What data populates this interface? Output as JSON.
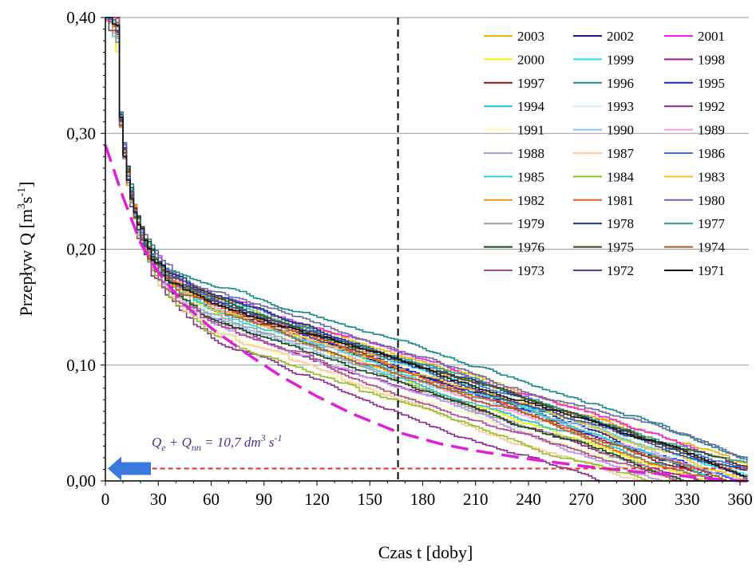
{
  "chart_data": {
    "type": "line",
    "title": "",
    "xlabel": "Czas t [doby]",
    "ylabel_parts": {
      "main": "Przepływ Q [m",
      "sup1": "3",
      "mid": "s",
      "sup2": "-1",
      "end": "]"
    },
    "xlim": [
      0,
      365
    ],
    "ylim": [
      0,
      0.4
    ],
    "x_ticks": [
      0,
      30,
      60,
      90,
      120,
      150,
      180,
      210,
      240,
      270,
      300,
      330,
      360
    ],
    "x_tick_labels": [
      "0",
      "30",
      "60",
      "90",
      "120",
      "150",
      "180",
      "210",
      "240",
      "270",
      "300",
      "330",
      "360"
    ],
    "y_ticks": [
      0,
      0.1,
      0.2,
      0.3,
      0.4
    ],
    "y_tick_labels": [
      "0,00",
      "0,10",
      "0,20",
      "0,30",
      "0,40"
    ],
    "grid": "horizontal",
    "legend_position": "top-right",
    "legend_columns": 3,
    "vertical_marker": {
      "x": 166,
      "style": "dashed",
      "color": "#000000"
    },
    "threshold": {
      "y": 0.0107,
      "label_parts": {
        "q1": "Q",
        "s1": "e",
        "plus": " + ",
        "q2": "Q",
        "s2": "nn",
        "rest": " = 10,7 dm",
        "sup1": "3",
        "s": " s",
        "sup2": "-1"
      },
      "color": "#e03030",
      "arrow_color": "#3a78e0"
    },
    "envelope": {
      "color": "#e020d8",
      "style": "dashed",
      "x": [
        0,
        10,
        20,
        30,
        45,
        60,
        80,
        100,
        120,
        140,
        166,
        190,
        210,
        240,
        270,
        300,
        330,
        350,
        360,
        365
      ],
      "y": [
        0.29,
        0.245,
        0.205,
        0.18,
        0.152,
        0.132,
        0.11,
        0.09,
        0.073,
        0.058,
        0.042,
        0.032,
        0.026,
        0.019,
        0.013,
        0.008,
        0.004,
        0.001,
        0.0,
        0.0
      ]
    },
    "series": [
      {
        "name": "2003",
        "color": "#f0b400",
        "low": 0.018,
        "mid": 0.125
      },
      {
        "name": "2002",
        "color": "#1a1a80",
        "low": 0.006,
        "mid": 0.11
      },
      {
        "name": "2001",
        "color": "#f020e8",
        "low": 0.028,
        "mid": 0.13
      },
      {
        "name": "2000",
        "color": "#f5f000",
        "low": 0.01,
        "mid": 0.105
      },
      {
        "name": "1999",
        "color": "#20e0e8",
        "low": 0.012,
        "mid": 0.12
      },
      {
        "name": "1998",
        "color": "#9a1a7a",
        "low": 0.02,
        "mid": 0.095
      },
      {
        "name": "1997",
        "color": "#8a1a1a",
        "low": 0.014,
        "mid": 0.115
      },
      {
        "name": "1996",
        "color": "#1a8a8a",
        "low": 0.022,
        "mid": 0.14
      },
      {
        "name": "1995",
        "color": "#2020d0",
        "low": 0.009,
        "mid": 0.118
      },
      {
        "name": "1994",
        "color": "#20c0d0",
        "low": 0.016,
        "mid": 0.108
      },
      {
        "name": "1993",
        "color": "#d0f0f8",
        "low": 0.011,
        "mid": 0.1
      },
      {
        "name": "1992",
        "color": "#8a2a8a",
        "low": 0.008,
        "mid": 0.07
      },
      {
        "name": "1991",
        "color": "#f8f8b0",
        "low": 0.007,
        "mid": 0.085
      },
      {
        "name": "1990",
        "color": "#90c0f0",
        "low": 0.013,
        "mid": 0.098
      },
      {
        "name": "1989",
        "color": "#f0a0e0",
        "low": 0.015,
        "mid": 0.112
      },
      {
        "name": "1988",
        "color": "#b890f0",
        "low": 0.01,
        "mid": 0.09
      },
      {
        "name": "1987",
        "color": "#f8c8a0",
        "low": 0.009,
        "mid": 0.08
      },
      {
        "name": "1986",
        "color": "#3070e0",
        "low": 0.018,
        "mid": 0.125
      },
      {
        "name": "1985",
        "color": "#30d0d0",
        "low": 0.012,
        "mid": 0.105
      },
      {
        "name": "1984",
        "color": "#90c020",
        "low": 0.01,
        "mid": 0.075
      },
      {
        "name": "1983",
        "color": "#f8c020",
        "low": 0.016,
        "mid": 0.11
      },
      {
        "name": "1982",
        "color": "#f89020",
        "low": 0.014,
        "mid": 0.12
      },
      {
        "name": "1981",
        "color": "#e06020",
        "low": 0.012,
        "mid": 0.113
      },
      {
        "name": "1980",
        "color": "#6a6aa0",
        "low": 0.03,
        "mid": 0.138
      },
      {
        "name": "1979",
        "color": "#a0a0a0",
        "low": 0.013,
        "mid": 0.1
      },
      {
        "name": "1978",
        "color": "#1a3a7a",
        "low": 0.015,
        "mid": 0.13
      },
      {
        "name": "1977",
        "color": "#30a080",
        "low": 0.017,
        "mid": 0.118
      },
      {
        "name": "1976",
        "color": "#1a4a1a",
        "low": 0.011,
        "mid": 0.095
      },
      {
        "name": "1975",
        "color": "#3a4a20",
        "low": 0.014,
        "mid": 0.128
      },
      {
        "name": "1974",
        "color": "#b05a20",
        "low": 0.012,
        "mid": 0.108
      },
      {
        "name": "1973",
        "color": "#b04a8a",
        "low": 0.008,
        "mid": 0.088
      },
      {
        "name": "1972",
        "color": "#4a4a90",
        "low": 0.015,
        "mid": 0.122
      },
      {
        "name": "1971",
        "color": "#101010",
        "low": 0.01,
        "mid": 0.115
      }
    ]
  }
}
